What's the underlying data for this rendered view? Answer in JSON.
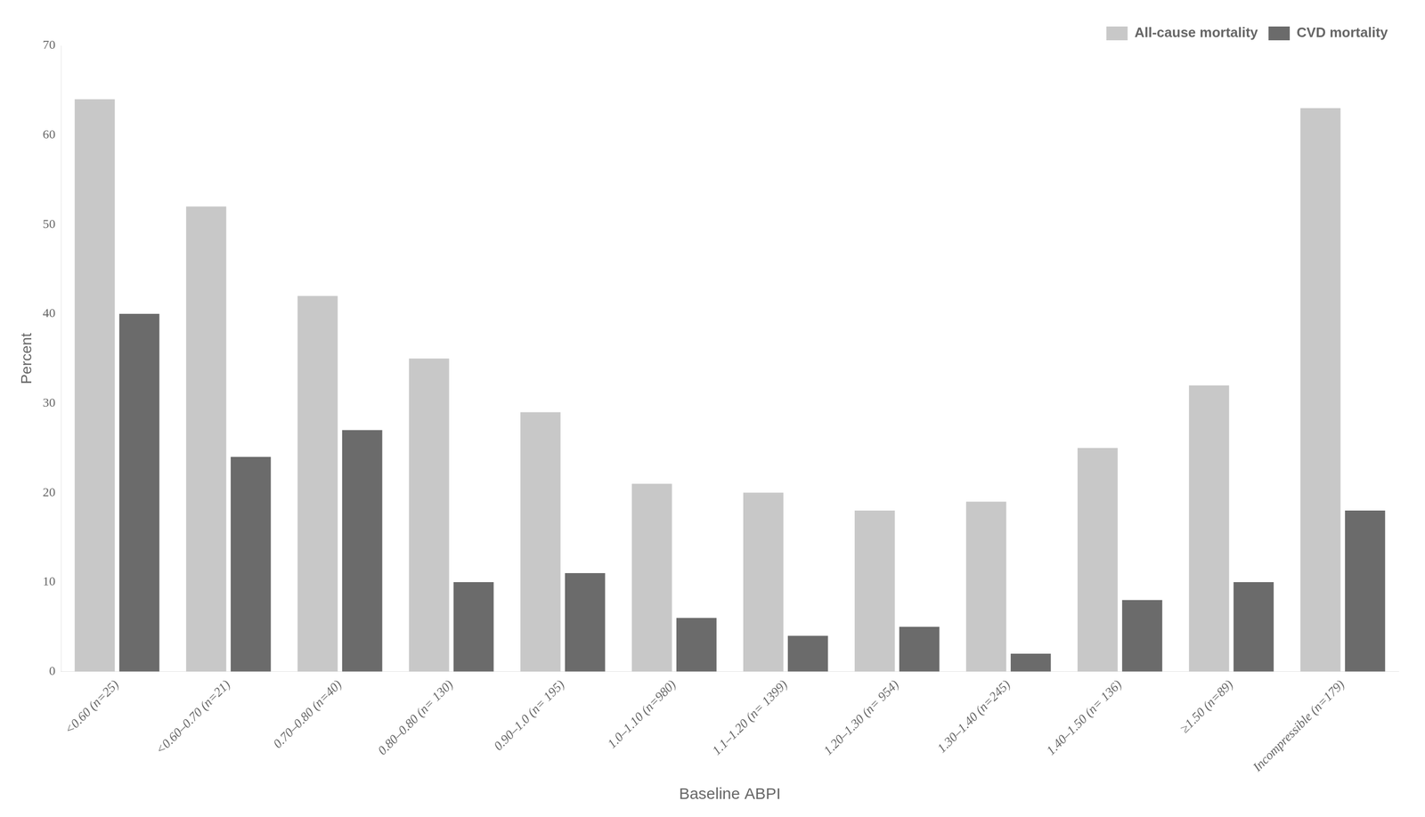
{
  "chart_data": {
    "type": "bar",
    "xlabel": "Baseline ABPI",
    "ylabel": "Percent",
    "categories": [
      "<0.60 (n=25)",
      "<0.60–0.70 (n=21)",
      "0.70–0.80 (n=40)",
      "0.80–0.80 (n= 130)",
      "0.90–1.0 (n= 195)",
      "1.0–1.10 (n=980)",
      "1.1–1.20 (n= 1399)",
      "1.20–1.30 (n= 954)",
      "1.30–1.40 (n=245)",
      "1.40–1.50 (n= 136)",
      "≥1.50 (n=89)",
      "Incompressible (n=179)"
    ],
    "series": [
      {
        "name": "All-cause mortality",
        "color": "#c8c8c8",
        "values": [
          64,
          52,
          42,
          35,
          29,
          21,
          20,
          18,
          19,
          25,
          32,
          63
        ]
      },
      {
        "name": "CVD mortality",
        "color": "#6b6b6b",
        "values": [
          40,
          24,
          27,
          10,
          11,
          6,
          4,
          5,
          2,
          8,
          10,
          18
        ]
      }
    ],
    "ylim": [
      0,
      70
    ],
    "yticks": [
      0,
      10,
      20,
      30,
      40,
      50,
      60,
      70
    ],
    "grid": false,
    "legend": "upper right"
  }
}
